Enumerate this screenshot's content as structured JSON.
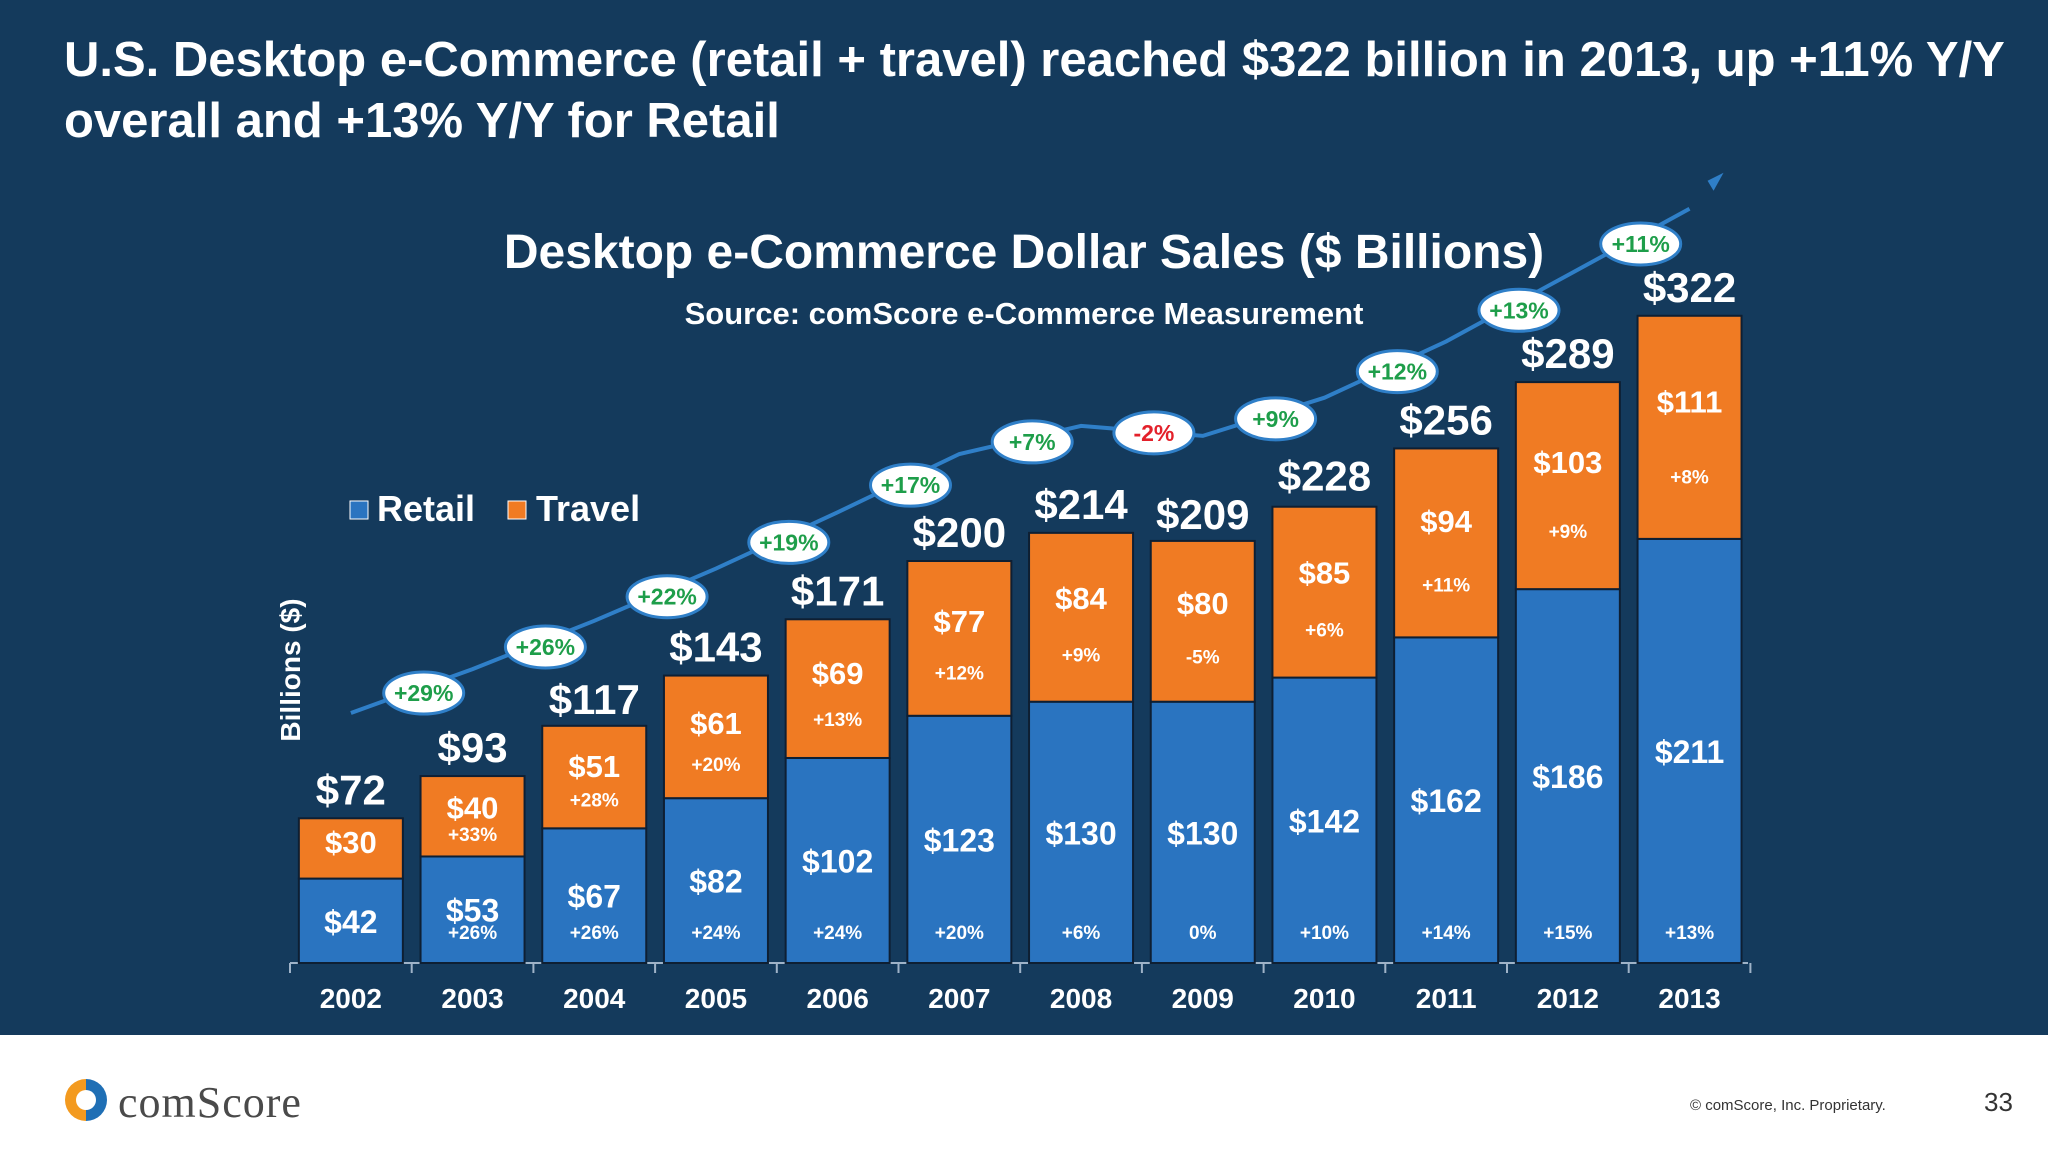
{
  "slide": {
    "headline": "U.S. Desktop e-Commerce (retail + travel) reached $322 billion in 2013, up +11% Y/Y overall and +13% Y/Y for Retail",
    "brand": "comScore",
    "copyright": "© comScore, Inc. Proprietary.",
    "page_number": "33"
  },
  "colors": {
    "background": "#143a5c",
    "retail": "#2a74c0",
    "travel": "#f07b23",
    "growth_positive": "#1e9e4a",
    "growth_negative": "#e3202a",
    "trend_arrow": "#2f7fc8"
  },
  "chart_data": {
    "type": "bar",
    "stacked": true,
    "title": "Desktop e-Commerce Dollar Sales ($ Billions)",
    "subtitle": "Source: comScore e-Commerce Measurement",
    "ylabel": "Billions ($)",
    "ylim": [
      0,
      340
    ],
    "grid": false,
    "legend": "top-left",
    "categories": [
      "2002",
      "2003",
      "2004",
      "2005",
      "2006",
      "2007",
      "2008",
      "2009",
      "2010",
      "2011",
      "2012",
      "2013"
    ],
    "series": [
      {
        "name": "Retail",
        "values": [
          42,
          53,
          67,
          82,
          102,
          123,
          130,
          130,
          142,
          162,
          186,
          211
        ],
        "labels": [
          "$42",
          "$53",
          "$67",
          "$82",
          "$102",
          "$123",
          "$130",
          "$130",
          "$142",
          "$162",
          "$186",
          "$211"
        ],
        "growth": [
          "",
          "+26%",
          "+26%",
          "+24%",
          "+24%",
          "+20%",
          "+6%",
          "0%",
          "+10%",
          "+14%",
          "+15%",
          "+13%"
        ]
      },
      {
        "name": "Travel",
        "values": [
          30,
          40,
          51,
          61,
          69,
          77,
          84,
          80,
          85,
          94,
          103,
          111
        ],
        "labels": [
          "$30",
          "$40",
          "$51",
          "$61",
          "$69",
          "$77",
          "$84",
          "$80",
          "$85",
          "$94",
          "$103",
          "$111"
        ],
        "growth": [
          "",
          "+33%",
          "+28%",
          "+20%",
          "+13%",
          "+12%",
          "+9%",
          "-5%",
          "+6%",
          "+11%",
          "+9%",
          "+8%"
        ]
      }
    ],
    "totals": [
      72,
      93,
      117,
      143,
      171,
      200,
      214,
      209,
      228,
      256,
      289,
      322
    ],
    "total_labels": [
      "$72",
      "$93",
      "$117",
      "$143",
      "$171",
      "$200",
      "$214",
      "$209",
      "$228",
      "$256",
      "$289",
      "$322"
    ],
    "total_growth": [
      "",
      "+29%",
      "+26%",
      "+22%",
      "+19%",
      "+17%",
      "+7%",
      "-2%",
      "+9%",
      "+12%",
      "+13%",
      "+11%"
    ]
  }
}
